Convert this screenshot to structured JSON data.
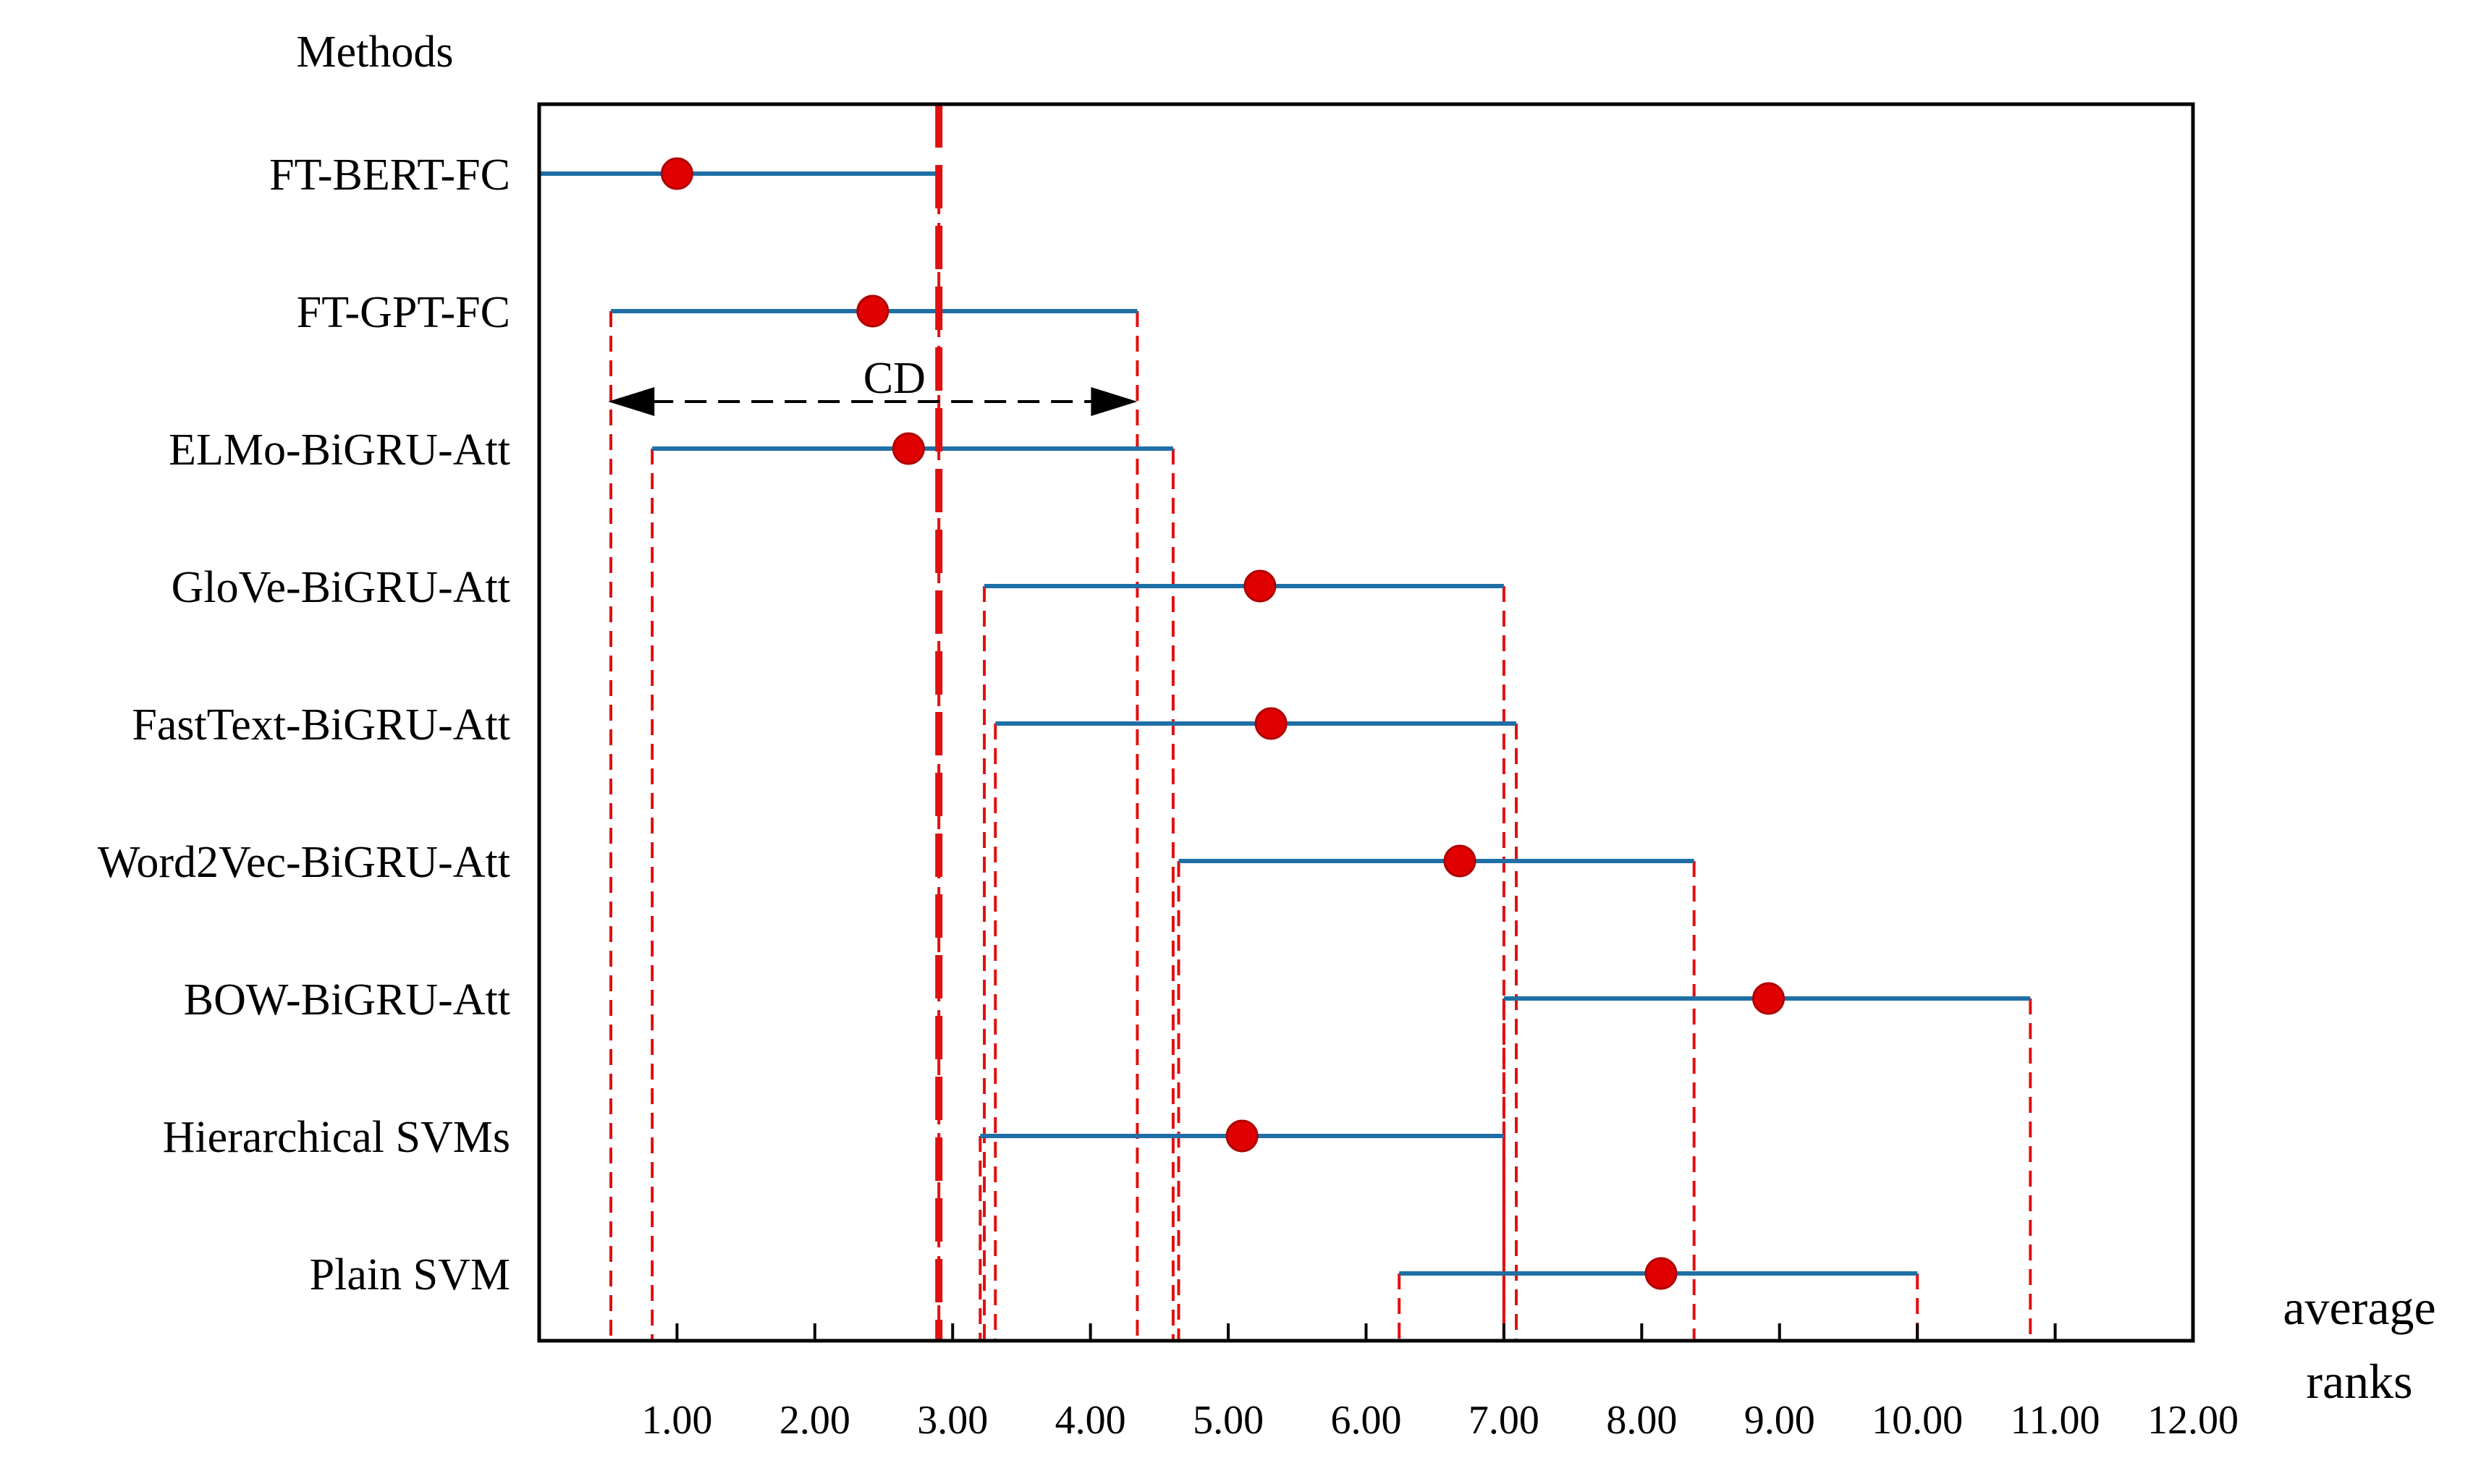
{
  "chart_data": {
    "type": "interval",
    "title": "",
    "ylabel": "Methods",
    "xlabel": "average ranks",
    "xlim": [
      0,
      12
    ],
    "x_ticks": [
      "1.00",
      "2.00",
      "3.00",
      "4.00",
      "5.00",
      "6.00",
      "7.00",
      "8.00",
      "9.00",
      "10.00",
      "11.00",
      "12.00"
    ],
    "categories": [
      "FT-BERT-FC",
      "FT-GPT-FC",
      "ELMo-BiGRU-Att",
      "GloVe-BiGRU-Att",
      "FastText-BiGRU-Att",
      "Word2Vec-BiGRU-Att",
      "BOW-BiGRU-Att",
      "Hierarchical SVMs",
      "Plain SVM"
    ],
    "series": [
      {
        "rank": [
          1.0,
          2.42,
          2.68,
          5.23,
          5.31,
          6.68,
          8.92,
          5.1,
          8.14
        ],
        "lower": [
          0.0,
          0.52,
          0.82,
          3.23,
          3.31,
          4.64,
          7.0,
          3.2,
          6.24
        ],
        "upper": [
          2.9,
          4.34,
          4.6,
          7.0,
          7.09,
          8.38,
          10.82,
          7.0,
          10.0
        ]
      }
    ],
    "reference_line": 2.9,
    "cd_annotation": {
      "label": "CD",
      "from": 0.5,
      "to": 4.34
    },
    "colors": {
      "interval": "#1f6fa6",
      "marker": "#e00000",
      "guide": "#e01010",
      "axis": "#000000"
    }
  }
}
